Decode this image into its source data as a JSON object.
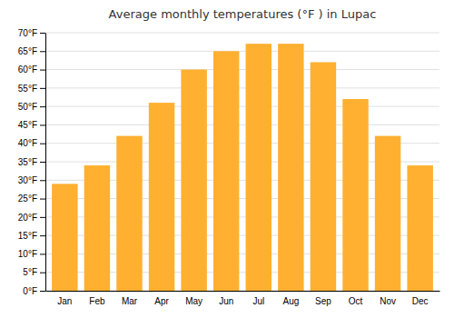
{
  "chart_data": {
    "type": "bar",
    "title": "Average monthly temperatures (°F ) in Lupac",
    "categories": [
      "Jan",
      "Feb",
      "Mar",
      "Apr",
      "May",
      "Jun",
      "Jul",
      "Aug",
      "Sep",
      "Oct",
      "Nov",
      "Dec"
    ],
    "values": [
      29,
      34,
      42,
      51,
      60,
      65,
      67,
      67,
      62,
      52,
      42,
      34
    ],
    "color": "#FFB030",
    "ylim": [
      0,
      70
    ],
    "yticks": [
      {
        "value": 0,
        "label": "0°F"
      },
      {
        "value": 5,
        "label": "5°F"
      },
      {
        "value": 10,
        "label": "10°F"
      },
      {
        "value": 15,
        "label": "15°F"
      },
      {
        "value": 20,
        "label": "20°F"
      },
      {
        "value": 25,
        "label": "25°F"
      },
      {
        "value": 30,
        "label": "30°F"
      },
      {
        "value": 35,
        "label": "35°F"
      },
      {
        "value": 40,
        "label": "40°F"
      },
      {
        "value": 45,
        "label": "45°F"
      },
      {
        "value": 50,
        "label": "50°F"
      },
      {
        "value": 55,
        "label": "55°F"
      },
      {
        "value": 60,
        "label": "60°F"
      },
      {
        "value": 65,
        "label": "65°F"
      },
      {
        "value": 70,
        "label": "70°F"
      }
    ],
    "grid": true
  }
}
